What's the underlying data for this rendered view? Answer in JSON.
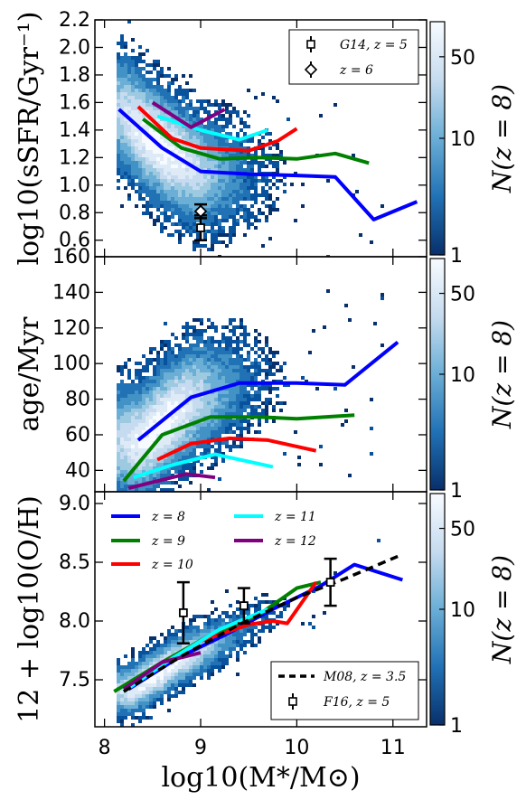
{
  "chart_data": {
    "xlabel": "log10(M*/M⊙)",
    "xlim": [
      7.9,
      11.35
    ],
    "xticks": [
      8,
      9,
      10,
      11
    ],
    "xtick_labels": [
      "8",
      "9",
      "10",
      "11"
    ],
    "colors": {
      "z8": "#0000ff",
      "z9": "#008000",
      "z10": "#ff0000",
      "z11": "#00ffff",
      "z12": "#800080",
      "data": "#000000"
    },
    "colorbar": {
      "label": "N(z = 8)",
      "scale": "log",
      "ticks": [
        "1",
        "10",
        "50"
      ],
      "tick_values": [
        1,
        10,
        50
      ],
      "range": [
        1,
        100
      ],
      "colors": [
        "#08306b",
        "#2171b5",
        "#6baed6",
        "#c6dbef",
        "#f7fbff"
      ]
    },
    "panels": [
      {
        "id": "ssfr",
        "type": "line",
        "ylabel": "log10(sSFR/Gyr⁻¹)",
        "ylim": [
          0.48,
          2.2
        ],
        "yticks": [
          0.6,
          0.8,
          1.0,
          1.2,
          1.4,
          1.6,
          1.8,
          2.0,
          2.2
        ],
        "ytick_labels": [
          "0.6",
          "0.8",
          "1.0",
          "1.2",
          "1.4",
          "1.6",
          "1.8",
          "2.0",
          "2.2"
        ],
        "series": [
          {
            "key": "z8",
            "x": [
              8.15,
              8.6,
              9.0,
              9.5,
              10.0,
              10.4,
              10.8,
              11.25
            ],
            "y": [
              1.55,
              1.27,
              1.1,
              1.08,
              1.07,
              1.06,
              0.75,
              0.88
            ]
          },
          {
            "key": "z9",
            "x": [
              8.4,
              8.8,
              9.2,
              9.6,
              10.0,
              10.4,
              10.75
            ],
            "y": [
              1.48,
              1.27,
              1.19,
              1.2,
              1.19,
              1.23,
              1.16
            ]
          },
          {
            "key": "z10",
            "x": [
              8.35,
              8.7,
              9.0,
              9.5,
              9.8,
              10.0
            ],
            "y": [
              1.57,
              1.34,
              1.27,
              1.25,
              1.32,
              1.41
            ]
          },
          {
            "key": "z11",
            "x": [
              8.55,
              9.0,
              9.4,
              9.7
            ],
            "y": [
              1.5,
              1.4,
              1.33,
              1.4
            ]
          },
          {
            "key": "z12",
            "x": [
              8.5,
              8.9,
              9.25
            ],
            "y": [
              1.6,
              1.42,
              1.55
            ]
          }
        ],
        "points": [
          {
            "key": "g14",
            "x": 9.0,
            "y": 0.69,
            "yerr": 0.09,
            "marker": "square"
          },
          {
            "key": "z6",
            "x": 9.0,
            "y": 0.81,
            "yerr": 0.05,
            "marker": "diamond"
          }
        ],
        "legend": {
          "placement": "top-right",
          "entries": [
            {
              "key": "g14",
              "text": "G14, z = 5",
              "marker": "square"
            },
            {
              "key": "z6",
              "text": "z = 6",
              "marker": "diamond"
            }
          ]
        }
      },
      {
        "id": "age",
        "type": "line",
        "ylabel": "age/Myr",
        "ylim": [
          28,
          160
        ],
        "yticks": [
          40,
          60,
          80,
          100,
          120,
          140,
          160
        ],
        "ytick_labels": [
          "40",
          "60",
          "80",
          "100",
          "120",
          "140",
          "160"
        ],
        "series": [
          {
            "key": "z8",
            "x": [
              8.35,
              8.9,
              9.4,
              10.0,
              10.5,
              11.05
            ],
            "y": [
              57,
              81,
              89,
              89,
              88,
              112
            ]
          },
          {
            "key": "z9",
            "x": [
              8.2,
              8.6,
              9.1,
              9.6,
              10.0,
              10.6
            ],
            "y": [
              34,
              60,
              70,
              70,
              69,
              71
            ]
          },
          {
            "key": "z10",
            "x": [
              8.55,
              8.9,
              9.3,
              9.7,
              10.2
            ],
            "y": [
              46,
              55,
              58,
              57,
              51
            ]
          },
          {
            "key": "z11",
            "x": [
              8.3,
              8.7,
              9.15,
              9.75
            ],
            "y": [
              36,
              43,
              49,
              42
            ]
          },
          {
            "key": "z12",
            "x": [
              8.25,
              8.85,
              9.15
            ],
            "y": [
              30,
              38,
              36
            ]
          }
        ]
      },
      {
        "id": "oh",
        "type": "line",
        "ylabel": "12 + log10(O/H)",
        "ylim": [
          7.1,
          9.1
        ],
        "yticks": [
          7.5,
          8.0,
          8.5,
          9.0
        ],
        "ytick_labels": [
          "7.5",
          "8.0",
          "8.5",
          "9.0"
        ],
        "series": [
          {
            "key": "z8",
            "x": [
              8.25,
              8.75,
              9.25,
              9.75,
              10.25,
              10.6,
              11.1
            ],
            "y": [
              7.42,
              7.68,
              7.88,
              8.1,
              8.3,
              8.48,
              8.35
            ]
          },
          {
            "key": "z9",
            "x": [
              8.1,
              8.6,
              9.1,
              9.6,
              10.0,
              10.25
            ],
            "y": [
              7.4,
              7.65,
              7.88,
              8.05,
              8.28,
              8.33
            ]
          },
          {
            "key": "z10",
            "x": [
              8.5,
              9.0,
              9.5,
              9.75,
              9.9,
              10.2
            ],
            "y": [
              7.58,
              7.83,
              7.97,
              8.0,
              7.98,
              8.33
            ]
          },
          {
            "key": "z11",
            "x": [
              8.2,
              8.7,
              9.2,
              9.7
            ],
            "y": [
              7.4,
              7.68,
              7.93,
              8.1
            ]
          },
          {
            "key": "z12",
            "x": [
              8.2,
              8.6,
              9.0
            ],
            "y": [
              7.42,
              7.65,
              7.73
            ]
          },
          {
            "key": "m08",
            "x": [
              8.2,
              8.8,
              9.4,
              10.0,
              10.5,
              11.05
            ],
            "y": [
              7.4,
              7.7,
              7.97,
              8.2,
              8.36,
              8.55
            ]
          }
        ],
        "points": [
          {
            "key": "f16",
            "x": 8.82,
            "y": 8.07,
            "yerr": 0.26,
            "marker": "square"
          },
          {
            "key": "f16",
            "x": 9.45,
            "y": 8.13,
            "yerr": 0.15,
            "marker": "square"
          },
          {
            "key": "f16",
            "x": 10.35,
            "y": 8.33,
            "yerr": 0.2,
            "marker": "square"
          }
        ],
        "legend": {
          "entries": [
            {
              "key": "z8",
              "text": "z = 8"
            },
            {
              "key": "z11",
              "text": "z = 11"
            },
            {
              "key": "z9",
              "text": "z = 9"
            },
            {
              "key": "z12",
              "text": "z = 12"
            },
            {
              "key": "z10",
              "text": "z = 10"
            }
          ]
        },
        "legend2": {
          "placement": "bottom-right",
          "entries": [
            {
              "key": "m08",
              "text": "M08, z = 3.5",
              "style": "dashed"
            },
            {
              "key": "f16",
              "text": "F16, z = 5",
              "marker": "square"
            }
          ]
        }
      }
    ]
  }
}
